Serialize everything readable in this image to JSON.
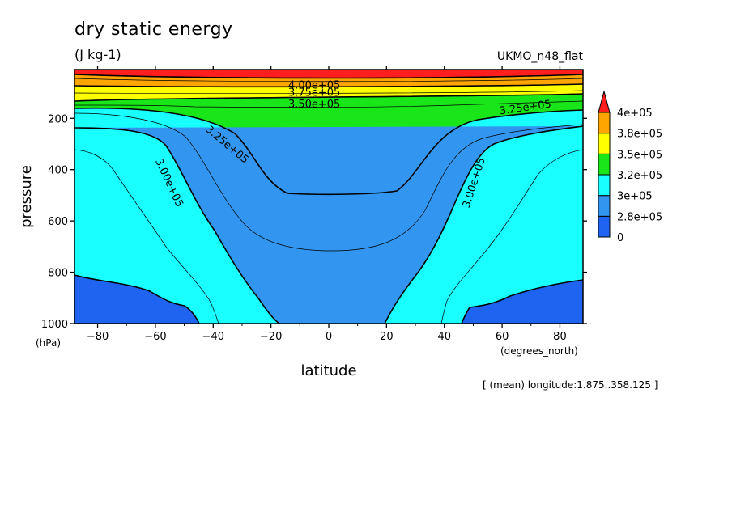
{
  "header": {
    "title": "dry static energy",
    "units": "(J kg-1)",
    "dataset": "UKMO_n48_flat",
    "subnote": "[ (mean) longitude:1.875..358.125 ]"
  },
  "chart_data": {
    "type": "heatmap",
    "xlabel": "latitude",
    "xunits": "(degrees_north)",
    "ylabel": "pressure",
    "yunits": "(hPa)",
    "xlim": [
      -88,
      88
    ],
    "ylim": [
      1000,
      10
    ],
    "x_ticks": [
      -80,
      -60,
      -40,
      -20,
      0,
      20,
      40,
      60,
      80
    ],
    "y_ticks": [
      200,
      400,
      600,
      800,
      1000
    ],
    "colorbar": {
      "levels": [
        "0",
        "2.8e+05",
        "3e+05",
        "3.2e+05",
        "3.5e+05",
        "3.8e+05",
        "4e+05"
      ],
      "colors": [
        "#1e64f0",
        "#3296f0",
        "#19ffff",
        "#19e619",
        "#ffff00",
        "#ffa500",
        "#ff1e1e"
      ],
      "extend": "max"
    },
    "contour_labels": [
      {
        "text": "4.00e+05",
        "lat": -5,
        "p": 68
      },
      {
        "text": "3.75e+05",
        "lat": -5,
        "p": 97
      },
      {
        "text": "3.50e+05",
        "lat": -5,
        "p": 143
      },
      {
        "text": "3.25e+05",
        "lat": -35,
        "p": 300
      },
      {
        "text": "3.25e+05",
        "lat": 68,
        "p": 155
      },
      {
        "text": "3.00e+05",
        "lat": -55,
        "p": 450
      },
      {
        "text": "3.00e+05",
        "lat": 50,
        "p": 450
      }
    ]
  }
}
